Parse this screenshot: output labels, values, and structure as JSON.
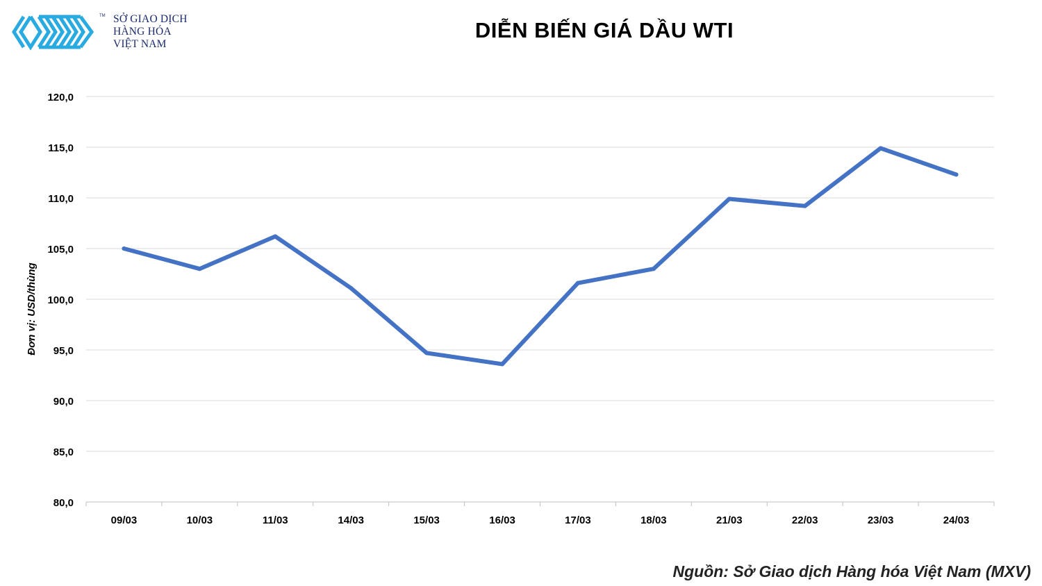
{
  "logo": {
    "line1": "SỞ GIAO DỊCH",
    "line2": "HÀNG HÓA",
    "line3": "VIỆT NAM",
    "tm": "TM",
    "color": "#29aae1"
  },
  "title": "DIỄN BIẾN GIÁ DẦU WTI",
  "source": "Nguồn: Sở Giao dịch Hàng hóa Việt Nam (MXV)",
  "chart_data": {
    "type": "line",
    "title": "DIỄN BIẾN GIÁ DẦU WTI",
    "xlabel": "",
    "ylabel": "Đơn vị: USD/thùng",
    "categories": [
      "09/03",
      "10/03",
      "11/03",
      "14/03",
      "15/03",
      "16/03",
      "17/03",
      "18/03",
      "21/03",
      "22/03",
      "23/03",
      "24/03"
    ],
    "series": [
      {
        "values": [
          105.0,
          103.0,
          106.2,
          101.1,
          94.7,
          93.6,
          101.6,
          103.0,
          109.9,
          109.2,
          114.9,
          112.3
        ],
        "color": "#4472c4"
      }
    ],
    "ylim": [
      80,
      120
    ],
    "yticks": [
      "80,0",
      "85,0",
      "90,0",
      "95,0",
      "100,0",
      "105,0",
      "110,0",
      "115,0",
      "120,0"
    ],
    "grid": true,
    "legend": "none"
  }
}
